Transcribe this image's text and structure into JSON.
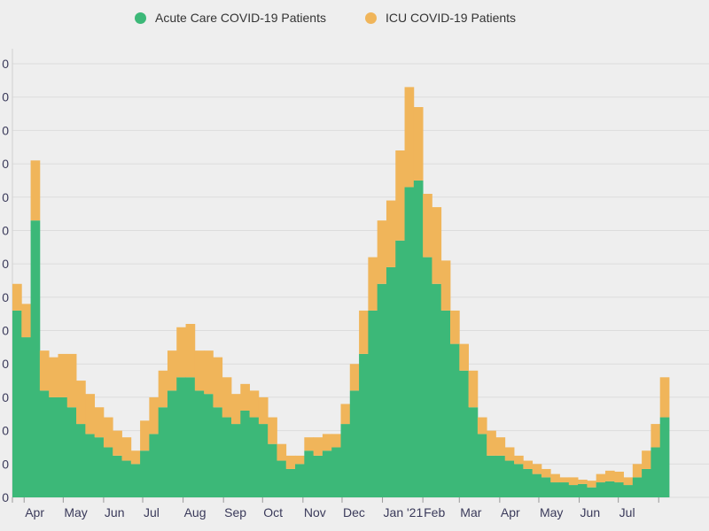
{
  "chart_data": {
    "type": "bar",
    "stacked": true,
    "title": "",
    "xlabel": "",
    "ylabel": "",
    "ylim": [
      0,
      13
    ],
    "y_tick_labels": [
      "0",
      "0",
      "0",
      "0",
      "0",
      "0",
      "0",
      "0",
      "0",
      "0",
      "0",
      "0",
      "0",
      "0"
    ],
    "grid": true,
    "legend_position": "top",
    "x_tick_labels": [
      "Apr",
      "May",
      "Jun",
      "Jul",
      "Aug",
      "Sep",
      "Oct",
      "Nov",
      "Dec",
      "Jan '21",
      "Feb",
      "Mar",
      "Apr",
      "May",
      "Jun",
      "Jul"
    ],
    "x": [
      "2020-03-23",
      "2020-03-30",
      "2020-04-06",
      "2020-04-13",
      "2020-04-20",
      "2020-04-27",
      "2020-05-04",
      "2020-05-11",
      "2020-05-18",
      "2020-05-25",
      "2020-06-01",
      "2020-06-08",
      "2020-06-15",
      "2020-06-22",
      "2020-06-29",
      "2020-07-06",
      "2020-07-13",
      "2020-07-20",
      "2020-07-27",
      "2020-08-03",
      "2020-08-10",
      "2020-08-17",
      "2020-08-24",
      "2020-08-31",
      "2020-09-07",
      "2020-09-14",
      "2020-09-21",
      "2020-09-28",
      "2020-10-05",
      "2020-10-12",
      "2020-10-19",
      "2020-10-26",
      "2020-11-02",
      "2020-11-09",
      "2020-11-16",
      "2020-11-23",
      "2020-11-30",
      "2020-12-07",
      "2020-12-14",
      "2020-12-21",
      "2020-12-28",
      "2021-01-04",
      "2021-01-11",
      "2021-01-18",
      "2021-01-25",
      "2021-02-01",
      "2021-02-08",
      "2021-02-15",
      "2021-02-22",
      "2021-03-01",
      "2021-03-08",
      "2021-03-15",
      "2021-03-22",
      "2021-03-29",
      "2021-04-05",
      "2021-04-12",
      "2021-04-19",
      "2021-04-26",
      "2021-05-03",
      "2021-05-10",
      "2021-05-17",
      "2021-05-24",
      "2021-05-31",
      "2021-06-07",
      "2021-06-14",
      "2021-06-21",
      "2021-06-28",
      "2021-07-05",
      "2021-07-12",
      "2021-07-19",
      "2021-07-26",
      "2021-08-02"
    ],
    "series": [
      {
        "name": "Acute Care COVID-19 Patients",
        "color": "#3cb878",
        "values": [
          5.6,
          4.8,
          8.3,
          3.2,
          3.0,
          3.0,
          2.7,
          2.2,
          1.9,
          1.8,
          1.5,
          1.25,
          1.1,
          1.0,
          1.4,
          1.9,
          2.7,
          3.2,
          3.6,
          3.6,
          3.2,
          3.1,
          2.7,
          2.4,
          2.2,
          2.6,
          2.4,
          2.2,
          1.6,
          1.1,
          0.85,
          1.0,
          1.4,
          1.25,
          1.4,
          1.5,
          2.2,
          3.2,
          4.3,
          5.6,
          6.4,
          6.9,
          7.7,
          9.3,
          9.5,
          7.2,
          6.4,
          5.6,
          4.6,
          3.8,
          2.7,
          1.9,
          1.25,
          1.25,
          1.1,
          1.0,
          0.85,
          0.7,
          0.6,
          0.45,
          0.45,
          0.37,
          0.4,
          0.3,
          0.45,
          0.48,
          0.45,
          0.37,
          0.6,
          0.85,
          1.5,
          2.4
        ]
      },
      {
        "name": "ICU COVID-19 Patients",
        "color": "#f0b55a",
        "values": [
          0.8,
          1.0,
          1.8,
          1.2,
          1.2,
          1.3,
          1.6,
          1.3,
          1.2,
          0.9,
          0.9,
          0.75,
          0.7,
          0.4,
          0.9,
          1.1,
          1.1,
          1.2,
          1.5,
          1.6,
          1.2,
          1.3,
          1.5,
          1.2,
          0.9,
          0.8,
          0.8,
          0.8,
          0.8,
          0.5,
          0.4,
          0.25,
          0.4,
          0.55,
          0.5,
          0.4,
          0.6,
          0.8,
          1.3,
          1.6,
          1.9,
          2.0,
          2.7,
          3.0,
          2.2,
          1.9,
          2.3,
          1.5,
          1.0,
          0.8,
          1.1,
          0.5,
          0.75,
          0.55,
          0.4,
          0.25,
          0.25,
          0.3,
          0.25,
          0.25,
          0.15,
          0.23,
          0.13,
          0.2,
          0.25,
          0.32,
          0.32,
          0.23,
          0.4,
          0.55,
          0.7,
          1.2
        ]
      }
    ]
  }
}
